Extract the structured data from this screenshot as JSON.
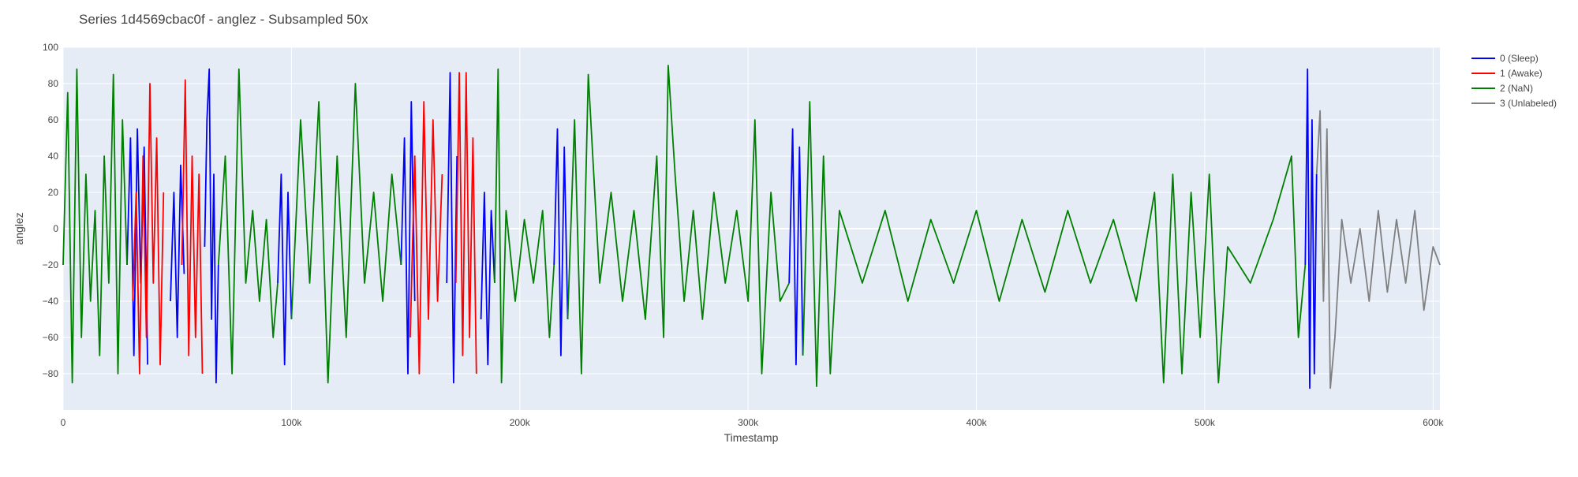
{
  "chart_data": {
    "type": "line",
    "title": "Series 1d4569cbac0f - anglez - Subsampled 50x",
    "xlabel": "Timestamp",
    "ylabel": "anglez",
    "xlim": [
      0,
      603000
    ],
    "ylim": [
      -100,
      100
    ],
    "x_ticks": [
      {
        "value": 0,
        "label": "0"
      },
      {
        "value": 100000,
        "label": "100k"
      },
      {
        "value": 200000,
        "label": "200k"
      },
      {
        "value": 300000,
        "label": "300k"
      },
      {
        "value": 400000,
        "label": "400k"
      },
      {
        "value": 500000,
        "label": "500k"
      },
      {
        "value": 600000,
        "label": "600k"
      }
    ],
    "y_ticks": [
      {
        "value": 100,
        "label": "100"
      },
      {
        "value": 80,
        "label": "80"
      },
      {
        "value": 60,
        "label": "60"
      },
      {
        "value": 40,
        "label": "40"
      },
      {
        "value": 20,
        "label": "20"
      },
      {
        "value": 0,
        "label": "0"
      },
      {
        "value": -20,
        "label": "−20"
      },
      {
        "value": -40,
        "label": "−40"
      },
      {
        "value": -60,
        "label": "−60"
      },
      {
        "value": -80,
        "label": "−80"
      }
    ],
    "grid": true,
    "legend_position": "top-right",
    "series": [
      {
        "name": "0 (Sleep)",
        "color": "#0000ff",
        "segments": [
          {
            "x": [
              28000,
              29500,
              31000,
              32500,
              34000,
              35500,
              37000
            ],
            "y": [
              -20,
              50,
              -70,
              55,
              -30,
              45,
              -75
            ]
          },
          {
            "x": [
              47000,
              48500,
              50000,
              51500,
              53000
            ],
            "y": [
              -40,
              20,
              -60,
              35,
              -25
            ]
          },
          {
            "x": [
              62000,
              63000,
              64000,
              65000,
              66000,
              67000,
              68000
            ],
            "y": [
              -10,
              60,
              88,
              -50,
              30,
              -85,
              -20
            ]
          },
          {
            "x": [
              94000,
              95500,
              97000,
              98500,
              100000
            ],
            "y": [
              -30,
              30,
              -75,
              20,
              -50
            ]
          },
          {
            "x": [
              148000,
              149500,
              151000,
              152500,
              154000
            ],
            "y": [
              -20,
              50,
              -80,
              70,
              -40
            ]
          },
          {
            "x": [
              168000,
              169500,
              171000,
              172500
            ],
            "y": [
              -30,
              86,
              -85,
              40
            ]
          },
          {
            "x": [
              183000,
              184500,
              186000,
              187500,
              189000
            ],
            "y": [
              -50,
              20,
              -75,
              10,
              -30
            ]
          },
          {
            "x": [
              215000,
              216500,
              218000,
              219500,
              221000
            ],
            "y": [
              -20,
              55,
              -70,
              45,
              -50
            ]
          },
          {
            "x": [
              318000,
              319500,
              321000,
              322500,
              324000
            ],
            "y": [
              -30,
              55,
              -75,
              45,
              -70
            ]
          },
          {
            "x": [
              544000,
              545000,
              546000,
              547000,
              548000,
              549000
            ],
            "y": [
              -20,
              88,
              -88,
              60,
              -80,
              30
            ]
          }
        ]
      },
      {
        "name": "1 (Awake)",
        "color": "#ff0000",
        "segments": [
          {
            "x": [
              30500,
              32000,
              33500,
              35000,
              36500,
              38000,
              39500,
              41000,
              42500,
              44000
            ],
            "y": [
              -40,
              20,
              -80,
              40,
              -60,
              80,
              -30,
              50,
              -75,
              20
            ]
          },
          {
            "x": [
              52000,
              53500,
              55000,
              56500,
              58000,
              59500,
              61000
            ],
            "y": [
              -20,
              82,
              -70,
              40,
              -60,
              30,
              -80
            ]
          },
          {
            "x": [
              152000,
              154000,
              156000,
              158000,
              160000,
              162000,
              164000,
              166000
            ],
            "y": [
              -60,
              40,
              -80,
              70,
              -50,
              60,
              -40,
              30
            ]
          },
          {
            "x": [
              172000,
              173500,
              175000,
              176500,
              178000,
              179500,
              181000
            ],
            "y": [
              -30,
              86,
              -70,
              86,
              -60,
              50,
              -80
            ]
          }
        ]
      },
      {
        "name": "2 (NaN)",
        "color": "#008000",
        "segments": [
          {
            "x": [
              0,
              2000,
              4000,
              6000,
              8000,
              10000,
              12000,
              14000,
              16000,
              18000,
              20000,
              22000,
              24000,
              26000,
              28000
            ],
            "y": [
              -20,
              75,
              -85,
              88,
              -60,
              30,
              -40,
              10,
              -70,
              40,
              -30,
              85,
              -80,
              60,
              -20
            ]
          },
          {
            "x": [
              68000,
              71000,
              74000,
              77000,
              80000,
              83000,
              86000,
              89000,
              92000,
              94000
            ],
            "y": [
              -20,
              40,
              -80,
              88,
              -30,
              10,
              -40,
              5,
              -60,
              -30
            ]
          },
          {
            "x": [
              100000,
              104000,
              108000,
              112000,
              116000,
              120000,
              124000,
              128000,
              132000,
              136000,
              140000,
              144000,
              148000
            ],
            "y": [
              -50,
              60,
              -30,
              70,
              -85,
              40,
              -60,
              80,
              -30,
              20,
              -40,
              30,
              -20
            ]
          },
          {
            "x": [
              189000,
              190500,
              192000,
              194000,
              198000,
              202000,
              206000,
              210000,
              213000,
              215000
            ],
            "y": [
              -30,
              88,
              -85,
              10,
              -40,
              5,
              -30,
              10,
              -60,
              -20
            ]
          },
          {
            "x": [
              221000,
              224000,
              227000,
              230000,
              235000,
              240000,
              245000,
              250000,
              255000,
              260000,
              263000,
              265000,
              268000,
              272000,
              276000,
              280000,
              285000,
              290000,
              295000,
              300000,
              303000,
              306000,
              310000,
              314000,
              318000
            ],
            "y": [
              -50,
              60,
              -80,
              85,
              -30,
              20,
              -40,
              10,
              -50,
              40,
              -60,
              90,
              30,
              -40,
              10,
              -50,
              20,
              -30,
              10,
              -40,
              60,
              -80,
              20,
              -40,
              -30
            ]
          },
          {
            "x": [
              324000,
              327000,
              330000,
              333000,
              336000,
              340000,
              350000,
              360000,
              370000,
              380000,
              390000,
              400000,
              410000,
              420000,
              430000,
              440000,
              450000,
              460000,
              470000,
              478000,
              482000,
              486000,
              490000,
              494000,
              498000,
              502000,
              506000,
              510000,
              520000,
              530000,
              538000,
              541000,
              544000
            ],
            "y": [
              -70,
              70,
              -87,
              40,
              -80,
              10,
              -30,
              10,
              -40,
              5,
              -30,
              10,
              -40,
              5,
              -35,
              10,
              -30,
              5,
              -40,
              20,
              -85,
              30,
              -80,
              20,
              -60,
              30,
              -85,
              -10,
              -30,
              5,
              40,
              -60,
              -20
            ]
          }
        ]
      },
      {
        "name": "3 (Unlabeled)",
        "color": "#808080",
        "segments": [
          {
            "x": [
              549000,
              550500,
              552000,
              553500,
              555000,
              557000,
              560000,
              564000,
              568000,
              572000,
              576000,
              580000,
              584000,
              588000,
              592000,
              596000,
              600000,
              603000
            ],
            "y": [
              30,
              65,
              -40,
              55,
              -88,
              -60,
              5,
              -30,
              0,
              -40,
              10,
              -35,
              5,
              -30,
              10,
              -45,
              -10,
              -20
            ]
          }
        ]
      }
    ]
  }
}
